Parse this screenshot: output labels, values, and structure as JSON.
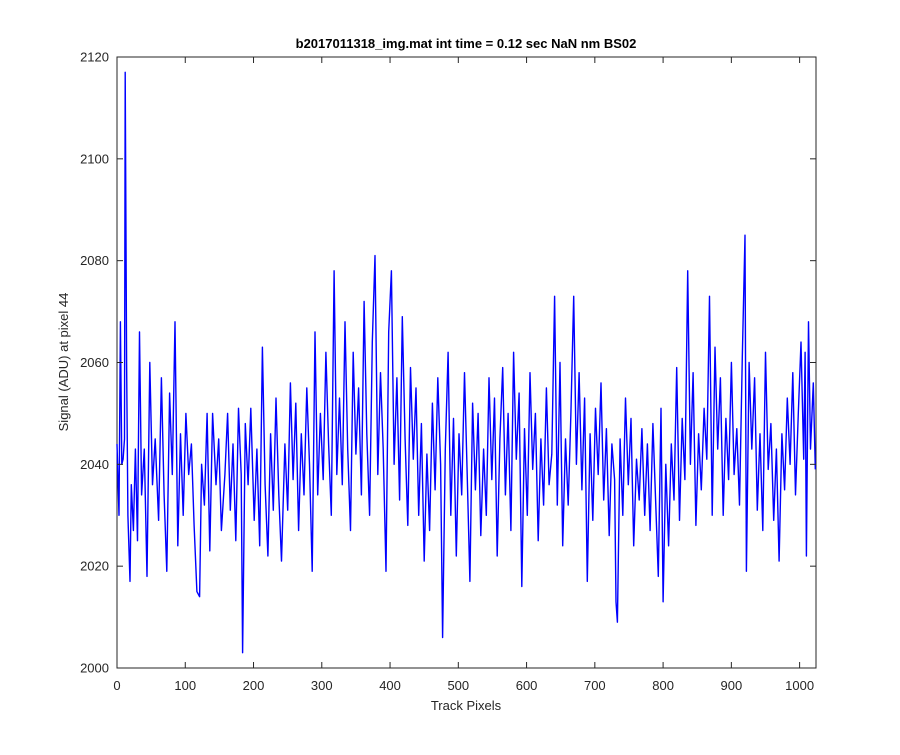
{
  "chart_data": {
    "type": "line",
    "title": "b2017011318_img.mat int time = 0.12 sec  NaN nm BS02",
    "xlabel": "Track Pixels",
    "ylabel": "Signal (ADU) at pixel 44",
    "xlim": [
      0,
      1024
    ],
    "ylim": [
      2000,
      2120
    ],
    "xticks": [
      0,
      100,
      200,
      300,
      400,
      500,
      600,
      700,
      800,
      900,
      1000
    ],
    "yticks": [
      2000,
      2020,
      2040,
      2060,
      2080,
      2100,
      2120
    ],
    "grid": false,
    "legend": "none",
    "series": [
      {
        "color": "#0000ff",
        "points": [
          [
            0,
            2044
          ],
          [
            3,
            2030
          ],
          [
            5,
            2068
          ],
          [
            7,
            2040
          ],
          [
            9,
            2041
          ],
          [
            11,
            2045
          ],
          [
            12,
            2117
          ],
          [
            14,
            2060
          ],
          [
            16,
            2030
          ],
          [
            19,
            2017
          ],
          [
            21,
            2036
          ],
          [
            24,
            2027
          ],
          [
            27,
            2043
          ],
          [
            30,
            2025
          ],
          [
            33,
            2066
          ],
          [
            36,
            2034
          ],
          [
            40,
            2043
          ],
          [
            44,
            2018
          ],
          [
            48,
            2060
          ],
          [
            52,
            2036
          ],
          [
            56,
            2045
          ],
          [
            61,
            2029
          ],
          [
            65,
            2057
          ],
          [
            69,
            2034
          ],
          [
            73,
            2019
          ],
          [
            77,
            2054
          ],
          [
            81,
            2038
          ],
          [
            85,
            2068
          ],
          [
            89,
            2024
          ],
          [
            93,
            2046
          ],
          [
            97,
            2030
          ],
          [
            101,
            2050
          ],
          [
            105,
            2038
          ],
          [
            109,
            2044
          ],
          [
            113,
            2028
          ],
          [
            117,
            2015
          ],
          [
            121,
            2014
          ],
          [
            124,
            2040
          ],
          [
            128,
            2032
          ],
          [
            132,
            2050
          ],
          [
            136,
            2023
          ],
          [
            140,
            2050
          ],
          [
            145,
            2036
          ],
          [
            149,
            2045
          ],
          [
            153,
            2027
          ],
          [
            158,
            2038
          ],
          [
            162,
            2050
          ],
          [
            166,
            2031
          ],
          [
            170,
            2044
          ],
          [
            174,
            2025
          ],
          [
            178,
            2051
          ],
          [
            182,
            2038
          ],
          [
            184,
            2003
          ],
          [
            188,
            2048
          ],
          [
            192,
            2036
          ],
          [
            196,
            2051
          ],
          [
            201,
            2029
          ],
          [
            205,
            2043
          ],
          [
            209,
            2024
          ],
          [
            213,
            2063
          ],
          [
            217,
            2036
          ],
          [
            221,
            2022
          ],
          [
            225,
            2046
          ],
          [
            229,
            2031
          ],
          [
            233,
            2053
          ],
          [
            237,
            2034
          ],
          [
            241,
            2021
          ],
          [
            246,
            2044
          ],
          [
            250,
            2031
          ],
          [
            254,
            2056
          ],
          [
            258,
            2037
          ],
          [
            262,
            2052
          ],
          [
            266,
            2027
          ],
          [
            270,
            2046
          ],
          [
            274,
            2034
          ],
          [
            278,
            2055
          ],
          [
            282,
            2040
          ],
          [
            286,
            2019
          ],
          [
            290,
            2066
          ],
          [
            294,
            2034
          ],
          [
            298,
            2050
          ],
          [
            302,
            2037
          ],
          [
            306,
            2062
          ],
          [
            310,
            2044
          ],
          [
            314,
            2030
          ],
          [
            318,
            2078
          ],
          [
            322,
            2038
          ],
          [
            326,
            2053
          ],
          [
            330,
            2036
          ],
          [
            334,
            2068
          ],
          [
            338,
            2043
          ],
          [
            342,
            2027
          ],
          [
            346,
            2062
          ],
          [
            350,
            2042
          ],
          [
            354,
            2055
          ],
          [
            358,
            2034
          ],
          [
            362,
            2072
          ],
          [
            366,
            2046
          ],
          [
            370,
            2030
          ],
          [
            374,
            2064
          ],
          [
            378,
            2081
          ],
          [
            382,
            2038
          ],
          [
            386,
            2058
          ],
          [
            390,
            2043
          ],
          [
            394,
            2019
          ],
          [
            398,
            2066
          ],
          [
            402,
            2078
          ],
          [
            406,
            2040
          ],
          [
            410,
            2057
          ],
          [
            414,
            2033
          ],
          [
            418,
            2069
          ],
          [
            422,
            2045
          ],
          [
            426,
            2028
          ],
          [
            430,
            2059
          ],
          [
            434,
            2041
          ],
          [
            438,
            2055
          ],
          [
            442,
            2030
          ],
          [
            446,
            2048
          ],
          [
            450,
            2021
          ],
          [
            454,
            2042
          ],
          [
            458,
            2027
          ],
          [
            462,
            2052
          ],
          [
            466,
            2035
          ],
          [
            470,
            2057
          ],
          [
            474,
            2040
          ],
          [
            477,
            2006
          ],
          [
            481,
            2043
          ],
          [
            485,
            2062
          ],
          [
            489,
            2030
          ],
          [
            493,
            2049
          ],
          [
            497,
            2022
          ],
          [
            501,
            2046
          ],
          [
            505,
            2034
          ],
          [
            509,
            2058
          ],
          [
            513,
            2038
          ],
          [
            517,
            2017
          ],
          [
            521,
            2052
          ],
          [
            525,
            2035
          ],
          [
            529,
            2050
          ],
          [
            533,
            2026
          ],
          [
            537,
            2043
          ],
          [
            541,
            2030
          ],
          [
            545,
            2057
          ],
          [
            549,
            2037
          ],
          [
            553,
            2053
          ],
          [
            557,
            2022
          ],
          [
            561,
            2045
          ],
          [
            565,
            2059
          ],
          [
            569,
            2034
          ],
          [
            573,
            2050
          ],
          [
            577,
            2027
          ],
          [
            581,
            2062
          ],
          [
            585,
            2041
          ],
          [
            589,
            2054
          ],
          [
            593,
            2016
          ],
          [
            597,
            2047
          ],
          [
            601,
            2030
          ],
          [
            605,
            2058
          ],
          [
            609,
            2039
          ],
          [
            613,
            2050
          ],
          [
            617,
            2025
          ],
          [
            621,
            2045
          ],
          [
            625,
            2032
          ],
          [
            629,
            2055
          ],
          [
            633,
            2036
          ],
          [
            637,
            2042
          ],
          [
            641,
            2073
          ],
          [
            645,
            2032
          ],
          [
            649,
            2060
          ],
          [
            653,
            2024
          ],
          [
            657,
            2045
          ],
          [
            661,
            2032
          ],
          [
            665,
            2050
          ],
          [
            669,
            2073
          ],
          [
            673,
            2040
          ],
          [
            677,
            2058
          ],
          [
            681,
            2035
          ],
          [
            685,
            2053
          ],
          [
            689,
            2017
          ],
          [
            693,
            2046
          ],
          [
            697,
            2029
          ],
          [
            701,
            2051
          ],
          [
            705,
            2038
          ],
          [
            709,
            2056
          ],
          [
            713,
            2033
          ],
          [
            717,
            2047
          ],
          [
            721,
            2026
          ],
          [
            725,
            2044
          ],
          [
            729,
            2037
          ],
          [
            731,
            2013
          ],
          [
            733,
            2009
          ],
          [
            737,
            2045
          ],
          [
            741,
            2030
          ],
          [
            745,
            2053
          ],
          [
            749,
            2036
          ],
          [
            753,
            2049
          ],
          [
            757,
            2024
          ],
          [
            761,
            2041
          ],
          [
            765,
            2033
          ],
          [
            769,
            2047
          ],
          [
            773,
            2030
          ],
          [
            777,
            2044
          ],
          [
            781,
            2027
          ],
          [
            785,
            2048
          ],
          [
            789,
            2033
          ],
          [
            793,
            2018
          ],
          [
            797,
            2051
          ],
          [
            800,
            2013
          ],
          [
            804,
            2040
          ],
          [
            808,
            2024
          ],
          [
            812,
            2044
          ],
          [
            816,
            2033
          ],
          [
            820,
            2059
          ],
          [
            824,
            2029
          ],
          [
            828,
            2049
          ],
          [
            832,
            2037
          ],
          [
            836,
            2078
          ],
          [
            840,
            2040
          ],
          [
            844,
            2058
          ],
          [
            848,
            2028
          ],
          [
            852,
            2046
          ],
          [
            856,
            2035
          ],
          [
            860,
            2051
          ],
          [
            864,
            2041
          ],
          [
            868,
            2073
          ],
          [
            872,
            2030
          ],
          [
            876,
            2063
          ],
          [
            880,
            2043
          ],
          [
            884,
            2057
          ],
          [
            888,
            2030
          ],
          [
            892,
            2049
          ],
          [
            896,
            2037
          ],
          [
            900,
            2060
          ],
          [
            904,
            2038
          ],
          [
            908,
            2047
          ],
          [
            912,
            2032
          ],
          [
            916,
            2061
          ],
          [
            920,
            2085
          ],
          [
            922,
            2019
          ],
          [
            926,
            2060
          ],
          [
            930,
            2043
          ],
          [
            934,
            2057
          ],
          [
            938,
            2031
          ],
          [
            942,
            2046
          ],
          [
            946,
            2027
          ],
          [
            950,
            2062
          ],
          [
            954,
            2039
          ],
          [
            958,
            2048
          ],
          [
            962,
            2029
          ],
          [
            966,
            2043
          ],
          [
            970,
            2021
          ],
          [
            974,
            2046
          ],
          [
            978,
            2035
          ],
          [
            982,
            2053
          ],
          [
            986,
            2040
          ],
          [
            990,
            2058
          ],
          [
            994,
            2034
          ],
          [
            998,
            2050
          ],
          [
            1002,
            2064
          ],
          [
            1006,
            2041
          ],
          [
            1008,
            2062
          ],
          [
            1010,
            2022
          ],
          [
            1013,
            2068
          ],
          [
            1016,
            2043
          ],
          [
            1020,
            2056
          ],
          [
            1023,
            2039
          ]
        ]
      }
    ]
  }
}
